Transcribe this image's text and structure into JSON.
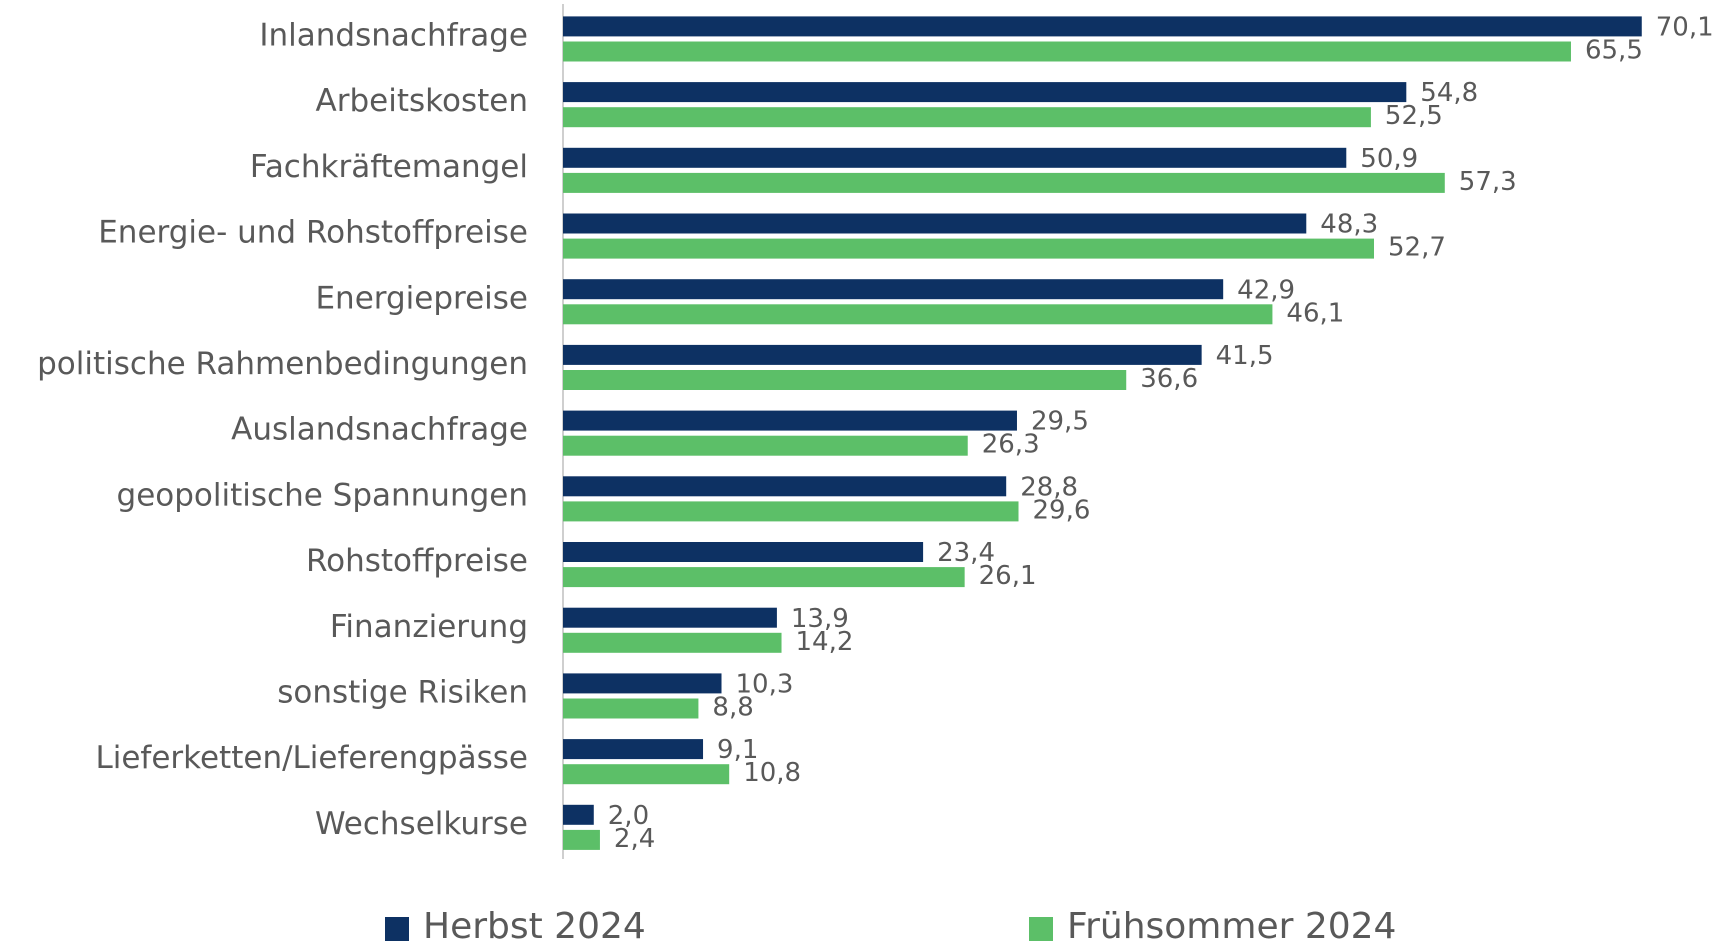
{
  "chart_data": {
    "type": "hbar",
    "categories": [
      "Inlandsnachfrage",
      "Arbeitskosten",
      "Fachkräftemangel",
      "Energie- und Rohstoffpreise",
      "Energiepreise",
      "politische Rahmenbedingungen",
      "Auslandsnachfrage",
      "geopolitische Spannungen",
      "Rohstoffpreise",
      "Finanzierung",
      "sonstige Risiken",
      "Lieferketten/Lieferengpässe",
      "Wechselkurse"
    ],
    "series": [
      {
        "name": "Herbst 2024",
        "color": "#0d3163",
        "values": [
          70.1,
          54.8,
          50.9,
          48.3,
          42.9,
          41.5,
          29.5,
          28.8,
          23.4,
          13.9,
          10.3,
          9.1,
          2.0
        ],
        "value_labels": [
          "70,1",
          "54,8",
          "50,9",
          "48,3",
          "42,9",
          "41,5",
          "29,5",
          "28,8",
          "23,4",
          "13,9",
          "10,3",
          "9,1",
          "2,0"
        ]
      },
      {
        "name": "Frühsommer 2024",
        "color": "#5cbf68",
        "values": [
          65.5,
          52.5,
          57.3,
          52.7,
          46.1,
          36.6,
          26.3,
          29.6,
          26.1,
          14.2,
          8.8,
          10.8,
          2.4
        ],
        "value_labels": [
          "65,5",
          "52,5",
          "57,3",
          "52,7",
          "46,1",
          "36,6",
          "26,3",
          "29,6",
          "26,1",
          "14,2",
          "8,8",
          "10,8",
          "2,4"
        ]
      }
    ],
    "xlim": [
      0,
      72
    ],
    "legend": "bottom"
  }
}
